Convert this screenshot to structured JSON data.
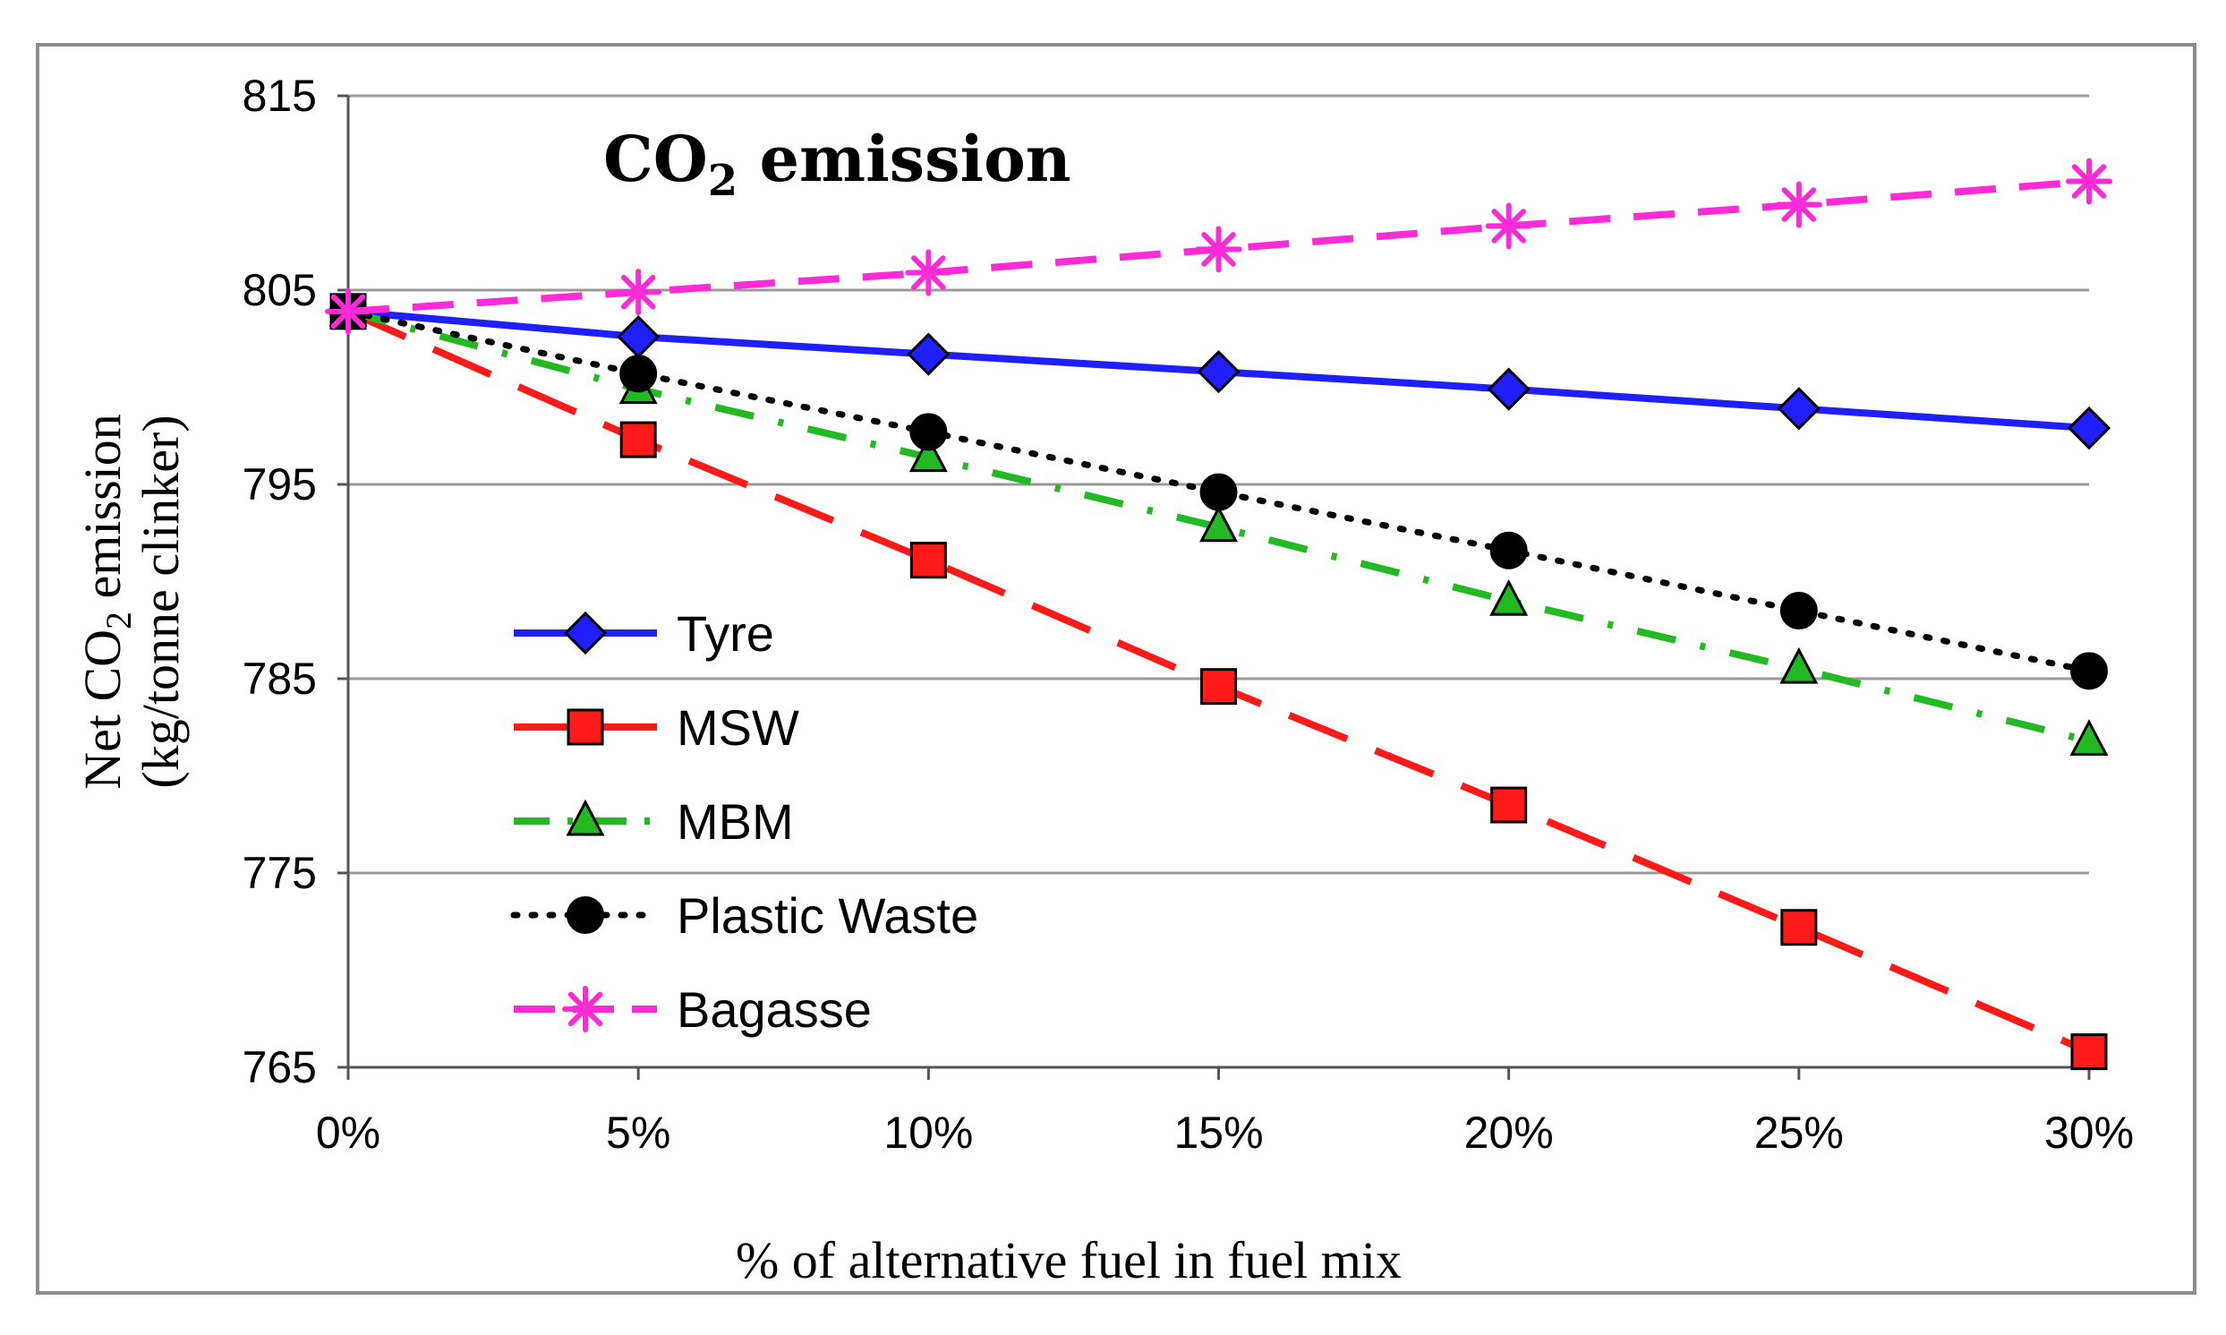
{
  "chart_data": {
    "type": "line",
    "title": {
      "main": "CO",
      "sub": "2",
      "rest": " emission"
    },
    "xlabel": "% of  alternative fuel in fuel mix",
    "ylabel": {
      "line1_a": "Net CO",
      "line1_sub": "2",
      "line1_b": " emission",
      "line2": "(kg/tonne clinker)"
    },
    "categories": [
      "0%",
      "5%",
      "10%",
      "15%",
      "20%",
      "25%",
      "30%"
    ],
    "ylim": [
      765,
      815
    ],
    "yticks": [
      765,
      775,
      785,
      795,
      805,
      815
    ],
    "grid": true,
    "legend_position": "lower-left",
    "series": [
      {
        "name": "Tyre",
        "color": "#1f1fff",
        "dash": "solid",
        "marker": "diamond",
        "values": [
          803.9,
          802.6,
          801.7,
          800.8,
          799.9,
          798.9,
          797.9
        ]
      },
      {
        "name": "MSW",
        "color": "#ff1a1a",
        "dash": "longdash",
        "marker": "square",
        "values": [
          803.9,
          797.3,
          791.1,
          784.6,
          778.5,
          772.2,
          765.8
        ]
      },
      {
        "name": "MBM",
        "color": "#22b922",
        "dash": "dashdot",
        "marker": "triangle",
        "values": [
          803.9,
          799.9,
          796.4,
          792.8,
          789.0,
          785.5,
          781.8
        ]
      },
      {
        "name": "Plastic Waste",
        "color": "#000000",
        "dash": "dot",
        "marker": "circle",
        "values": [
          803.9,
          800.7,
          797.7,
          794.6,
          791.6,
          788.5,
          785.4
        ]
      },
      {
        "name": "Bagasse",
        "color": "#ff2bd6",
        "dash": "dash",
        "marker": "asterisk",
        "values": [
          803.9,
          804.9,
          805.9,
          807.1,
          808.3,
          809.4,
          810.6
        ]
      }
    ]
  }
}
